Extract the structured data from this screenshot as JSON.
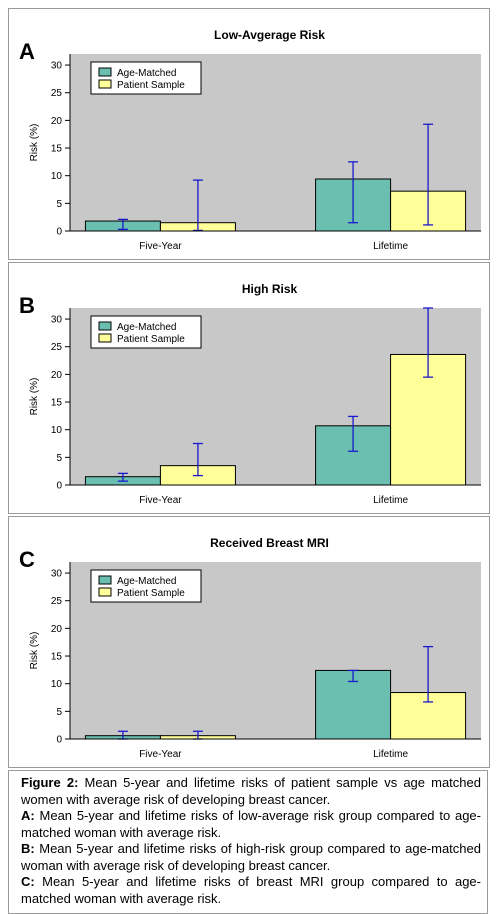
{
  "chart_data": [
    {
      "type": "bar",
      "panel_label": "A",
      "title": "Low-Avgerage Risk",
      "ylabel": "Risk (%)",
      "xlabel": "",
      "categories": [
        "Five-Year",
        "Lifetime"
      ],
      "ylim": [
        0,
        32
      ],
      "yticks": [
        "0",
        "5",
        "10",
        "15",
        "20",
        "25",
        "30"
      ],
      "grid": false,
      "legend_position": "top-left",
      "series": [
        {
          "name": "Age-Matched",
          "color": "#6abfb0",
          "values": [
            1.8,
            9.4
          ],
          "error_low": [
            0.3,
            1.5
          ],
          "error_high": [
            2.1,
            12.5
          ]
        },
        {
          "name": "Patient Sample",
          "color": "#ffff99",
          "values": [
            1.5,
            7.2
          ],
          "error_low": [
            0.1,
            1.1
          ],
          "error_high": [
            9.2,
            19.3
          ]
        }
      ]
    },
    {
      "type": "bar",
      "panel_label": "B",
      "title": "High Risk",
      "ylabel": "Risk (%)",
      "xlabel": "",
      "categories": [
        "Five-Year",
        "Lifetime"
      ],
      "ylim": [
        0,
        32
      ],
      "yticks": [
        "0",
        "5",
        "10",
        "15",
        "20",
        "25",
        "30"
      ],
      "grid": false,
      "legend_position": "top-left",
      "series": [
        {
          "name": "Age-Matched",
          "color": "#6abfb0",
          "values": [
            1.5,
            10.7
          ],
          "error_low": [
            0.7,
            6.1
          ],
          "error_high": [
            2.1,
            12.4
          ]
        },
        {
          "name": "Patient Sample",
          "color": "#ffff99",
          "values": [
            3.5,
            23.6
          ],
          "error_low": [
            1.7,
            19.5
          ],
          "error_high": [
            7.5,
            32.0
          ]
        }
      ]
    },
    {
      "type": "bar",
      "panel_label": "C",
      "title": "Received Breast MRI",
      "ylabel": "Risk (%)",
      "xlabel": "",
      "categories": [
        "Five-Year",
        "Lifetime"
      ],
      "ylim": [
        0,
        32
      ],
      "yticks": [
        "0",
        "5",
        "10",
        "15",
        "20",
        "25",
        "30"
      ],
      "grid": false,
      "legend_position": "top-left",
      "series": [
        {
          "name": "Age-Matched",
          "color": "#6abfb0",
          "values": [
            0.6,
            12.4
          ],
          "error_low": [
            0.0,
            10.4
          ],
          "error_high": [
            1.4,
            12.4
          ]
        },
        {
          "name": "Patient Sample",
          "color": "#ffff99",
          "values": [
            0.6,
            8.4
          ],
          "error_low": [
            0.0,
            6.7
          ],
          "error_high": [
            1.4,
            16.7
          ]
        }
      ]
    }
  ],
  "caption": {
    "main_label": "Figure 2:",
    "main_text": "Mean 5-year and lifetime risks of patient sample vs age matched women with average risk of developing breast cancer.",
    "a_label": "A:",
    "a_text": "Mean 5-year and lifetime risks of low-average risk group compared to age-matched woman with average risk.",
    "b_label": "B:",
    "b_text": "Mean 5-year and lifetime risks of high-risk group compared to age-matched woman with average risk of developing breast cancer.",
    "c_label": "C:",
    "c_text": "Mean 5-year and lifetime risks of breast MRI group compared to age-matched woman with average risk."
  },
  "colors": {
    "plot_background": "#c8c8c8",
    "error_bar": "#1a1acc",
    "bar_outline": "#000000"
  }
}
